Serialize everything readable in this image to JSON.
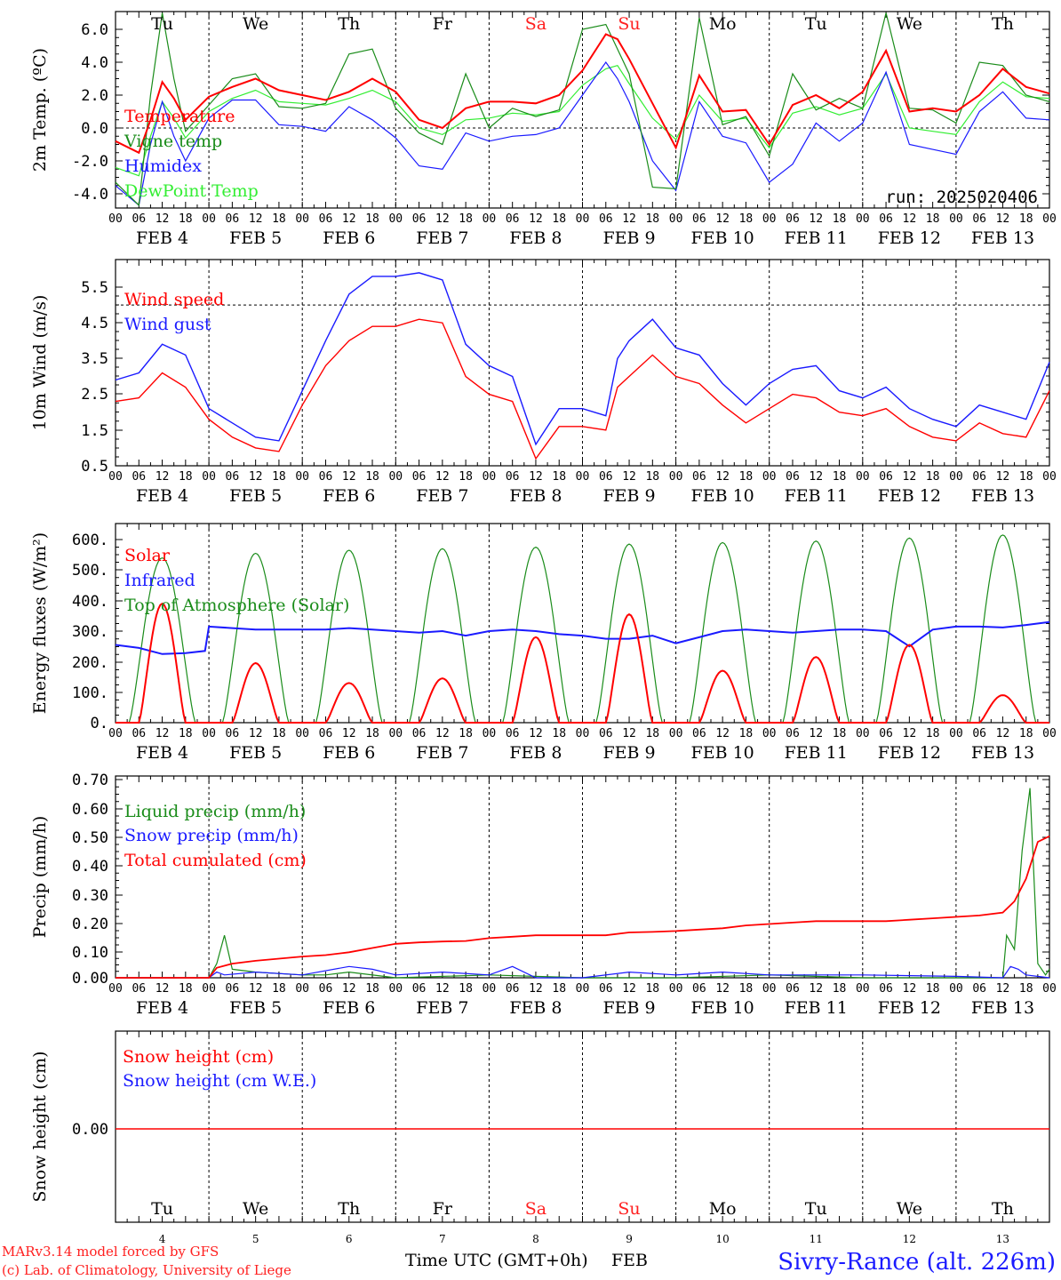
{
  "colors": {
    "red": "#ff0000",
    "green": "#1a8c1a",
    "blue": "#1a1aff",
    "lightgreen": "#33ee33",
    "weekend": "#ff2020",
    "axis": "#000000"
  },
  "x_axis": {
    "hour_ticks": [
      "00",
      "06",
      "12",
      "18"
    ],
    "end_tick": "00",
    "dates": [
      "FEB  4",
      "FEB  5",
      "FEB  6",
      "FEB  7",
      "FEB  8",
      "FEB  9",
      "FEB 10",
      "FEB 11",
      "FEB 12",
      "FEB 13"
    ],
    "days": [
      "Tu",
      "We",
      "Th",
      "Fr",
      "Sa",
      "Su",
      "Mo",
      "Tu",
      "We",
      "Th"
    ],
    "weekend_index": [
      4,
      5
    ],
    "day_numbers": [
      "4",
      "5",
      "6",
      "7",
      "8",
      "9",
      "10",
      "11",
      "12",
      "13"
    ],
    "xlabel": "Time UTC (GMT+0h)",
    "month": "FEB"
  },
  "footer": {
    "model": "MARv3.14 model forced by GFS",
    "credit": "(c) Lab. of Climatology, University of Liege",
    "station": "Sivry-Rance (alt. 226m)"
  },
  "chart_data": [
    {
      "type": "line",
      "ylabel": "2m Temp. (ºC)",
      "yticks": [
        "6.0",
        "4.0",
        "2.0",
        "0.0",
        "-2.0",
        "-4.0"
      ],
      "ylim": [
        -4.8,
        6.8
      ],
      "ref_line": 0.0,
      "annotation": "run: 2025020406",
      "x_unit": "hours since FEB 4 00 UTC",
      "series": [
        {
          "name": "Temperature",
          "color": "red",
          "x": [
            0,
            6,
            9,
            12,
            15,
            18,
            24,
            30,
            36,
            42,
            48,
            54,
            60,
            66,
            72,
            78,
            84,
            90,
            96,
            102,
            108,
            114,
            120,
            126,
            129,
            132,
            138,
            144,
            150,
            156,
            162,
            168,
            174,
            180,
            186,
            192,
            198,
            204,
            210,
            216,
            222,
            228,
            234,
            240
          ],
          "values": [
            -0.8,
            -1.5,
            0.5,
            2.8,
            1.8,
            0.5,
            1.9,
            2.5,
            3.0,
            2.3,
            2.0,
            1.7,
            2.2,
            3.0,
            2.2,
            0.5,
            0.0,
            1.2,
            1.6,
            1.6,
            1.5,
            2.0,
            3.5,
            5.7,
            5.4,
            4.2,
            1.5,
            -1.2,
            3.2,
            1.0,
            1.1,
            -1.0,
            1.4,
            2.0,
            1.2,
            2.2,
            4.7,
            1.0,
            1.2,
            1.0,
            2.0,
            3.6,
            2.5,
            2.1
          ]
        },
        {
          "name": "Vigne temp",
          "color": "green",
          "x": [
            0,
            6,
            9,
            12,
            15,
            18,
            24,
            30,
            36,
            42,
            48,
            54,
            60,
            66,
            72,
            78,
            84,
            90,
            96,
            102,
            108,
            114,
            120,
            126,
            129,
            132,
            138,
            144,
            150,
            156,
            162,
            168,
            174,
            180,
            186,
            192,
            198,
            204,
            210,
            216,
            222,
            228,
            234,
            240
          ],
          "values": [
            -3.3,
            -4.7,
            2.0,
            7.0,
            3.0,
            -0.2,
            1.4,
            3.0,
            3.3,
            1.3,
            1.2,
            1.5,
            4.5,
            4.8,
            1.2,
            -0.3,
            -1.0,
            3.3,
            0.0,
            1.2,
            0.7,
            1.1,
            6.0,
            6.3,
            4.8,
            3.3,
            -3.6,
            -3.7,
            6.7,
            0.2,
            0.7,
            -1.7,
            3.3,
            1.1,
            1.8,
            1.2,
            7.0,
            1.2,
            1.1,
            0.3,
            4.0,
            3.8,
            2.0,
            1.6
          ]
        },
        {
          "name": "Humidex",
          "color": "blue",
          "x": [
            0,
            6,
            9,
            12,
            15,
            18,
            24,
            30,
            36,
            42,
            48,
            54,
            60,
            66,
            72,
            78,
            84,
            90,
            96,
            102,
            108,
            114,
            120,
            126,
            129,
            132,
            138,
            144,
            150,
            156,
            162,
            168,
            174,
            180,
            186,
            192,
            198,
            204,
            210,
            216,
            222,
            228,
            234,
            240
          ],
          "values": [
            -3.5,
            -4.7,
            -1.0,
            1.6,
            -0.5,
            -2.0,
            0.6,
            1.7,
            1.7,
            0.2,
            0.1,
            -0.2,
            1.3,
            0.5,
            -0.6,
            -2.3,
            -2.5,
            -0.3,
            -0.8,
            -0.5,
            -0.4,
            0.0,
            2.0,
            4.0,
            3.0,
            1.6,
            -2.0,
            -3.8,
            1.6,
            -0.5,
            -0.9,
            -3.3,
            -2.2,
            0.3,
            -0.8,
            0.3,
            3.4,
            -1.0,
            -1.3,
            -1.6,
            1.0,
            2.2,
            0.6,
            0.5
          ]
        },
        {
          "name": "DewPoint Temp",
          "color": "lightgreen",
          "x": [
            0,
            6,
            9,
            12,
            15,
            18,
            24,
            30,
            36,
            42,
            48,
            54,
            60,
            66,
            72,
            78,
            84,
            90,
            96,
            102,
            108,
            114,
            120,
            126,
            129,
            132,
            138,
            144,
            150,
            156,
            162,
            168,
            174,
            180,
            186,
            192,
            198,
            204,
            210,
            216,
            222,
            228,
            234,
            240
          ],
          "values": [
            -2.4,
            -2.9,
            -0.5,
            1.6,
            0.6,
            -0.6,
            1.0,
            1.8,
            2.3,
            1.6,
            1.5,
            1.4,
            1.8,
            2.3,
            1.6,
            0.0,
            -0.4,
            0.5,
            0.6,
            0.9,
            0.8,
            1.0,
            2.6,
            3.6,
            3.8,
            2.7,
            0.6,
            -0.7,
            2.0,
            0.4,
            0.6,
            -1.2,
            0.9,
            1.3,
            0.8,
            1.2,
            3.3,
            0.0,
            -0.2,
            -0.4,
            1.6,
            2.8,
            1.9,
            1.8
          ]
        }
      ]
    },
    {
      "type": "line",
      "ylabel": "10m Wind (m/s)",
      "yticks": [
        "5.5",
        "4.5",
        "3.5",
        "2.5",
        "1.5",
        "0.5"
      ],
      "ylim": [
        0.5,
        6.1
      ],
      "ref_line": 5.0,
      "x_unit": "hours since FEB 4 00 UTC",
      "series": [
        {
          "name": "Wind speed",
          "color": "red",
          "x": [
            0,
            6,
            12,
            18,
            24,
            30,
            36,
            42,
            48,
            54,
            60,
            66,
            72,
            78,
            84,
            90,
            96,
            102,
            108,
            114,
            120,
            126,
            129,
            132,
            138,
            144,
            150,
            156,
            162,
            168,
            174,
            180,
            186,
            192,
            198,
            204,
            210,
            216,
            222,
            228,
            234,
            240
          ],
          "values": [
            2.3,
            2.4,
            3.1,
            2.7,
            1.8,
            1.3,
            1.0,
            0.9,
            2.2,
            3.3,
            4.0,
            4.4,
            4.4,
            4.6,
            4.5,
            3.0,
            2.5,
            2.3,
            0.7,
            1.6,
            1.6,
            1.5,
            2.7,
            3.0,
            3.6,
            3.0,
            2.8,
            2.2,
            1.7,
            2.1,
            2.5,
            2.4,
            2.0,
            1.9,
            2.1,
            1.6,
            1.3,
            1.2,
            1.7,
            1.4,
            1.3,
            2.6
          ]
        },
        {
          "name": "Wind gust",
          "color": "blue",
          "x": [
            0,
            6,
            12,
            18,
            24,
            30,
            36,
            42,
            48,
            54,
            60,
            66,
            72,
            78,
            84,
            90,
            96,
            102,
            108,
            114,
            120,
            126,
            129,
            132,
            138,
            144,
            150,
            156,
            162,
            168,
            174,
            180,
            186,
            192,
            198,
            204,
            210,
            216,
            222,
            228,
            234,
            240
          ],
          "values": [
            2.9,
            3.1,
            3.9,
            3.6,
            2.1,
            1.7,
            1.3,
            1.2,
            2.6,
            4.0,
            5.3,
            5.8,
            5.8,
            5.9,
            5.7,
            3.9,
            3.3,
            3.0,
            1.1,
            2.1,
            2.1,
            1.9,
            3.5,
            4.0,
            4.6,
            3.8,
            3.6,
            2.8,
            2.2,
            2.8,
            3.2,
            3.3,
            2.6,
            2.4,
            2.7,
            2.1,
            1.8,
            1.6,
            2.2,
            2.0,
            1.8,
            3.4
          ]
        }
      ]
    },
    {
      "type": "line",
      "ylabel": "Energy fluxes (W/m²)",
      "yticks": [
        "600.",
        "500.",
        "400.",
        "300.",
        "200.",
        "100.",
        "0."
      ],
      "ylim": [
        0,
        650
      ],
      "x_unit": "hours since FEB 4 00 UTC",
      "series": [
        {
          "name": "Solar",
          "color": "red",
          "daily_peak": [
            390,
            195,
            130,
            145,
            280,
            355,
            170,
            215,
            255,
            90
          ]
        },
        {
          "name": "Infrared",
          "color": "blue",
          "x": [
            0,
            6,
            12,
            18,
            23,
            24,
            30,
            36,
            42,
            48,
            54,
            60,
            66,
            72,
            78,
            84,
            90,
            96,
            102,
            108,
            114,
            120,
            126,
            132,
            138,
            144,
            150,
            156,
            162,
            168,
            174,
            180,
            186,
            192,
            198,
            204,
            210,
            216,
            222,
            228,
            234,
            240
          ],
          "values": [
            255,
            245,
            225,
            228,
            235,
            315,
            310,
            305,
            305,
            305,
            305,
            310,
            305,
            300,
            295,
            300,
            285,
            300,
            305,
            300,
            290,
            285,
            275,
            275,
            285,
            260,
            280,
            300,
            305,
            300,
            295,
            300,
            305,
            305,
            300,
            250,
            305,
            315,
            315,
            312,
            320,
            330
          ]
        },
        {
          "name": "Top of Atmosphere (Solar)",
          "color": "green",
          "daily_peak": [
            540,
            555,
            565,
            570,
            575,
            585,
            590,
            595,
            605,
            615
          ]
        }
      ]
    },
    {
      "type": "line",
      "ylabel": "Precip (mm/h)",
      "yticks": [
        "0.70",
        "0.60",
        "0.50",
        "0.40",
        "0.30",
        "0.20",
        "0.10",
        "0.00"
      ],
      "ylim": [
        0,
        0.7
      ],
      "x_unit": "hours since FEB 4 00 UTC",
      "series": [
        {
          "name": "Liquid precip (mm/h)",
          "color": "green",
          "x": [
            0,
            24,
            26,
            28,
            30,
            36,
            48,
            54,
            60,
            72,
            96,
            120,
            144,
            168,
            192,
            216,
            228,
            229,
            231,
            233,
            235,
            237,
            239,
            240
          ],
          "values": [
            0,
            0,
            0.05,
            0.15,
            0.03,
            0.02,
            0.01,
            0.01,
            0.02,
            0,
            0.01,
            0,
            0,
            0.01,
            0,
            0,
            0,
            0.15,
            0.1,
            0.45,
            0.67,
            0.05,
            0.01,
            0.03
          ]
        },
        {
          "name": "Snow precip (mm/h)",
          "color": "blue",
          "x": [
            0,
            24,
            26,
            28,
            36,
            48,
            60,
            66,
            72,
            84,
            96,
            102,
            108,
            120,
            132,
            144,
            156,
            168,
            192,
            216,
            228,
            230,
            232,
            234,
            240
          ],
          "values": [
            0,
            0,
            0.02,
            0.01,
            0.02,
            0.01,
            0.04,
            0.03,
            0.01,
            0.02,
            0.01,
            0.04,
            0,
            0,
            0.02,
            0.01,
            0.02,
            0.01,
            0.01,
            0.005,
            0,
            0.04,
            0.03,
            0.01,
            0
          ]
        },
        {
          "name": "Total cumulated (cm)",
          "color": "red",
          "x": [
            0,
            24,
            26,
            30,
            36,
            48,
            54,
            60,
            66,
            72,
            78,
            84,
            90,
            96,
            102,
            108,
            120,
            126,
            132,
            138,
            144,
            150,
            156,
            162,
            168,
            174,
            180,
            186,
            192,
            198,
            204,
            210,
            216,
            222,
            228,
            231,
            234,
            237,
            240
          ],
          "values": [
            0,
            0,
            0.035,
            0.05,
            0.06,
            0.075,
            0.08,
            0.09,
            0.105,
            0.12,
            0.125,
            0.128,
            0.13,
            0.14,
            0.145,
            0.15,
            0.15,
            0.15,
            0.16,
            0.162,
            0.165,
            0.17,
            0.175,
            0.185,
            0.19,
            0.195,
            0.2,
            0.2,
            0.2,
            0.2,
            0.205,
            0.21,
            0.215,
            0.22,
            0.23,
            0.27,
            0.35,
            0.48,
            0.5
          ]
        }
      ]
    },
    {
      "type": "line",
      "ylabel": "Snow height (cm)",
      "yticks": [
        "0.00"
      ],
      "ylim": [
        -1,
        1
      ],
      "x_unit": "hours since FEB 4 00 UTC",
      "series": [
        {
          "name": "Snow height (cm)",
          "color": "red",
          "x": [
            0,
            240
          ],
          "values": [
            0,
            0
          ]
        },
        {
          "name": "Snow height (cm W.E.)",
          "color": "blue",
          "x": [
            0,
            240
          ],
          "values": [
            0,
            0
          ]
        }
      ]
    }
  ]
}
